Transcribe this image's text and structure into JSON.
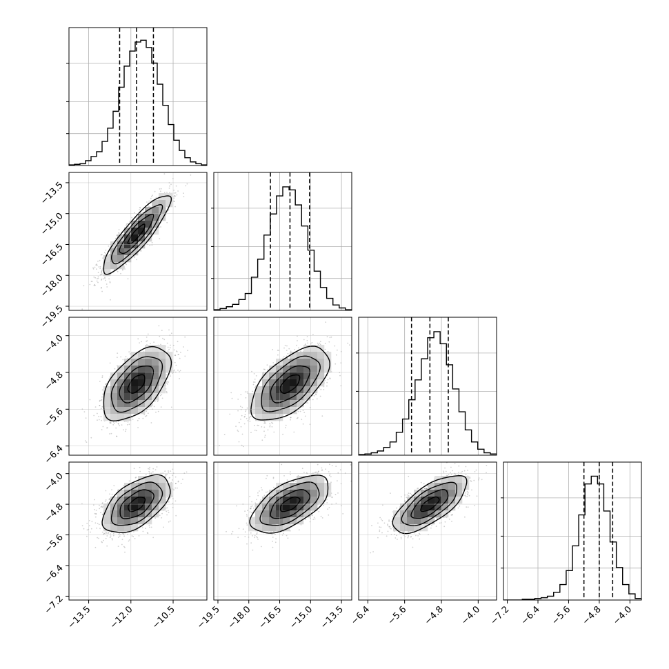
{
  "chart_data": {
    "type": "corner",
    "title": "",
    "grid": true,
    "parameters": [
      {
        "name": "",
        "median": -11.8,
        "q16": -12.4,
        "q84": -11.2,
        "hist_range": [
          -14.2,
          -9.3
        ],
        "hist_counts": [
          1,
          2,
          3,
          8,
          15,
          23,
          40,
          62,
          90,
          130,
          165,
          190,
          205,
          208,
          196,
          170,
          135,
          100,
          68,
          42,
          25,
          13,
          6,
          3,
          1
        ],
        "hist_ymax": 212,
        "axis_range": [
          -14.2,
          -9.3
        ],
        "ticks": [
          -13.5,
          -12.0,
          -10.5
        ],
        "tick_labels": [
          "−13.5",
          "−12.0",
          "−10.5"
        ]
      },
      {
        "name": "",
        "median": -16.0,
        "q16": -16.95,
        "q84": -15.05,
        "hist_range": [
          -19.7,
          -13.0
        ],
        "hist_counts": [
          1,
          3,
          6,
          10,
          18,
          28,
          55,
          85,
          125,
          160,
          190,
          205,
          200,
          175,
          140,
          100,
          65,
          38,
          20,
          9,
          4,
          1
        ],
        "hist_ymax": 212,
        "axis_range": [
          -19.7,
          -13.0
        ],
        "ticks": [
          -19.5,
          -18.0,
          -16.5,
          -15.0,
          -13.5
        ],
        "tick_labels": [
          "−19.5",
          "−18.0",
          "−16.5",
          "−15.0",
          "−13.5"
        ]
      },
      {
        "name": "",
        "median": -5.05,
        "q16": -5.45,
        "q84": -4.65,
        "hist_range": [
          -6.6,
          -3.6
        ],
        "hist_counts": [
          1,
          2,
          4,
          7,
          13,
          22,
          38,
          60,
          92,
          125,
          160,
          195,
          205,
          185,
          150,
          110,
          72,
          42,
          22,
          10,
          4,
          2
        ],
        "hist_ymax": 212,
        "axis_range": [
          -6.6,
          -3.6
        ],
        "ticks": [
          -6.4,
          -5.6,
          -4.8,
          -4.0
        ],
        "tick_labels": [
          "−6.4",
          "−5.6",
          "−4.8",
          "−4.0"
        ]
      },
      {
        "name": "",
        "median": -4.8,
        "q16": -5.2,
        "q84": -4.45,
        "hist_range": [
          -7.3,
          -3.7
        ],
        "hist_counts": [
          0,
          0,
          0,
          1,
          1,
          2,
          3,
          5,
          10,
          20,
          38,
          70,
          110,
          150,
          160,
          150,
          115,
          75,
          42,
          20,
          8,
          2
        ],
        "hist_ymax": 165,
        "axis_range": [
          -7.3,
          -3.7
        ],
        "ticks": [
          -7.2,
          -6.4,
          -5.6,
          -4.8,
          -4.0
        ],
        "tick_labels": [
          "−7.2",
          "−6.4",
          "−5.6",
          "−4.8",
          "−4.0"
        ]
      }
    ],
    "pairs": [
      {
        "x": 0,
        "y": 1,
        "correlation": 0.88
      },
      {
        "x": 0,
        "y": 2,
        "correlation": 0.55
      },
      {
        "x": 1,
        "y": 2,
        "correlation": 0.6
      },
      {
        "x": 0,
        "y": 3,
        "correlation": 0.55
      },
      {
        "x": 1,
        "y": 3,
        "correlation": 0.6
      },
      {
        "x": 2,
        "y": 3,
        "correlation": 0.7
      }
    ],
    "contour_levels_sigma": [
      0.5,
      1.0,
      1.5,
      2.0
    ]
  },
  "colors": {
    "line": "#000000",
    "grid": "#b0b0b0",
    "points": "#444444",
    "frame": "#000000"
  }
}
